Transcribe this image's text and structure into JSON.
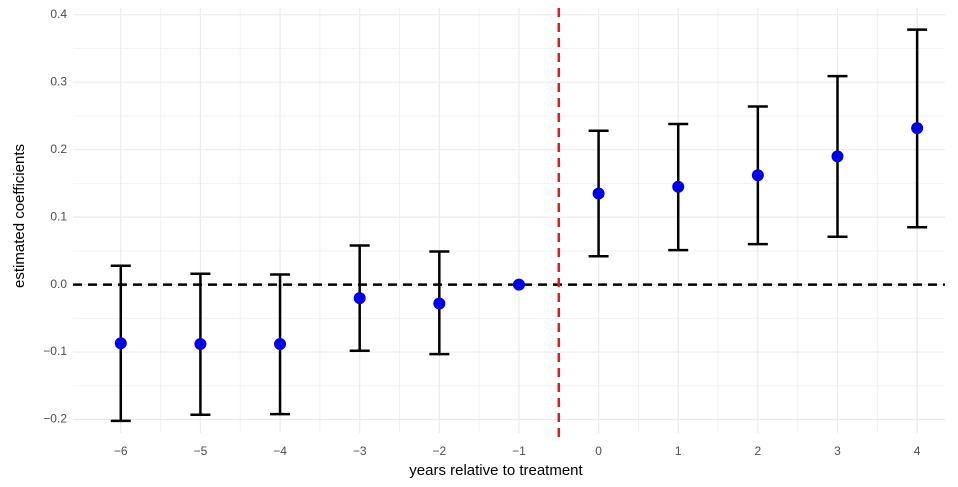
{
  "chart_data": {
    "type": "errorbar",
    "x_label": "years relative to treatment",
    "y_label": "estimated coefficients",
    "x": [
      -6,
      -5,
      -4,
      -3,
      -2,
      -1,
      0,
      1,
      2,
      3,
      4
    ],
    "series": [
      {
        "color": "#0000e6",
        "values": [
          -0.087,
          -0.088,
          -0.088,
          -0.02,
          -0.028,
          0,
          0.135,
          0.145,
          0.162,
          0.19,
          0.232
        ],
        "lower": [
          -0.202,
          -0.193,
          -0.192,
          -0.098,
          -0.103,
          0,
          0.042,
          0.051,
          0.06,
          0.071,
          0.085
        ],
        "upper": [
          0.028,
          0.016,
          0.015,
          0.058,
          0.049,
          0,
          0.228,
          0.238,
          0.264,
          0.309,
          0.378
        ],
        "error_color": "#000000"
      }
    ],
    "xlim": [
      -6.6,
      4.35
    ],
    "ylim": [
      -0.22,
      0.41
    ],
    "xticks": [
      {
        "value": -6,
        "label": "−6"
      },
      {
        "value": -5,
        "label": "−5"
      },
      {
        "value": -4,
        "label": "−4"
      },
      {
        "value": -3,
        "label": "−3"
      },
      {
        "value": -2,
        "label": "−2"
      },
      {
        "value": -1,
        "label": "−1"
      },
      0,
      1,
      2,
      3,
      4
    ],
    "yticks": [
      {
        "value": -0.2,
        "label": "−0.2"
      },
      {
        "value": -0.1,
        "label": "−0.1"
      },
      {
        "value": 0,
        "label": "0.0"
      },
      0.1,
      0.2,
      0.3,
      0.4
    ],
    "grid": true,
    "minor_grid": true,
    "hline": {
      "value": 0,
      "color": "#000000"
    },
    "vline": {
      "value": -0.5,
      "color": "#e41a1c"
    }
  }
}
